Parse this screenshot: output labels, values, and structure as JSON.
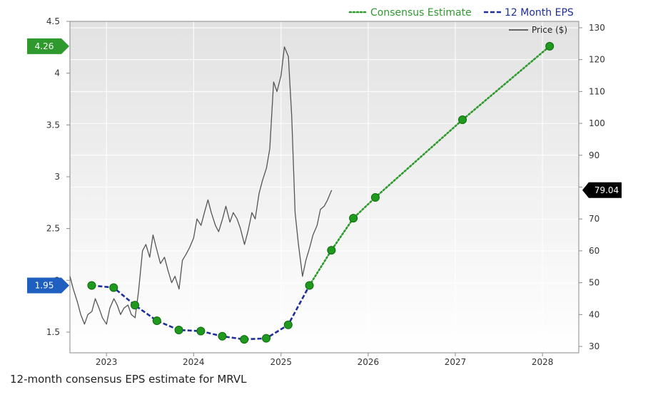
{
  "chart_data": {
    "type": "line",
    "title": "",
    "xlabel": "",
    "ylabel_left": "",
    "ylabel_right": "",
    "x_range": [
      "2022-08-01",
      "2028-06-01"
    ],
    "x_ticks": [
      {
        "label": "2023",
        "date": "2023-01-01"
      },
      {
        "label": "2024",
        "date": "2024-01-01"
      },
      {
        "label": "2025",
        "date": "2025-01-01"
      },
      {
        "label": "2026",
        "date": "2026-01-01"
      },
      {
        "label": "2027",
        "date": "2027-01-01"
      },
      {
        "label": "2028",
        "date": "2028-01-01"
      }
    ],
    "left_axis": {
      "ylim": [
        1.3,
        4.5
      ],
      "ticks": [
        "1.5",
        "2",
        "2.5",
        "3",
        "3.5",
        "4",
        "4.5"
      ]
    },
    "right_axis": {
      "ylim": [
        28,
        132
      ],
      "ticks": [
        "30",
        "40",
        "50",
        "60",
        "70",
        "80",
        "90",
        "100",
        "110",
        "120",
        "130"
      ]
    },
    "grid": true,
    "legend": {
      "position": "top-right",
      "entries": [
        {
          "name": "Consensus Estimate",
          "style": "dotted",
          "color": "#2e9a2e"
        },
        {
          "name": "12 Month EPS",
          "style": "dashed",
          "color": "#1f2f9a"
        },
        {
          "name": "Price ($)",
          "style": "solid",
          "color": "#555555"
        }
      ]
    },
    "series": [
      {
        "name": "12 Month EPS",
        "axis": "left",
        "color": "#1f2f9a",
        "points": [
          {
            "date": "2022-10-31",
            "value": 1.95
          },
          {
            "date": "2023-01-31",
            "value": 1.93
          },
          {
            "date": "2023-04-30",
            "value": 1.76
          },
          {
            "date": "2023-07-31",
            "value": 1.61
          },
          {
            "date": "2023-10-31",
            "value": 1.52
          },
          {
            "date": "2024-01-31",
            "value": 1.51
          },
          {
            "date": "2024-04-30",
            "value": 1.46
          },
          {
            "date": "2024-07-31",
            "value": 1.43
          },
          {
            "date": "2024-10-31",
            "value": 1.44
          },
          {
            "date": "2025-01-31",
            "value": 1.57
          },
          {
            "date": "2025-04-30",
            "value": 1.95
          }
        ]
      },
      {
        "name": "Consensus Estimate",
        "axis": "left",
        "color": "#2e9a2e",
        "points": [
          {
            "date": "2025-04-30",
            "value": 1.95
          },
          {
            "date": "2025-07-31",
            "value": 2.29
          },
          {
            "date": "2025-10-31",
            "value": 2.6
          },
          {
            "date": "2026-01-31",
            "value": 2.8
          },
          {
            "date": "2027-01-31",
            "value": 3.55
          },
          {
            "date": "2028-01-31",
            "value": 4.26
          }
        ]
      },
      {
        "name": "Price ($)",
        "axis": "right",
        "color": "#555555",
        "points": [
          [
            "2022-08-01",
            52
          ],
          [
            "2022-08-15",
            48
          ],
          [
            "2022-09-01",
            44
          ],
          [
            "2022-09-15",
            40
          ],
          [
            "2022-10-01",
            37
          ],
          [
            "2022-10-15",
            40
          ],
          [
            "2022-11-01",
            41
          ],
          [
            "2022-11-15",
            45
          ],
          [
            "2022-12-01",
            42
          ],
          [
            "2022-12-15",
            39
          ],
          [
            "2023-01-01",
            37
          ],
          [
            "2023-01-15",
            42
          ],
          [
            "2023-02-01",
            45
          ],
          [
            "2023-02-15",
            43
          ],
          [
            "2023-03-01",
            40
          ],
          [
            "2023-03-15",
            42
          ],
          [
            "2023-04-01",
            43
          ],
          [
            "2023-04-15",
            40
          ],
          [
            "2023-05-01",
            39
          ],
          [
            "2023-05-15",
            47
          ],
          [
            "2023-06-01",
            60
          ],
          [
            "2023-06-15",
            62
          ],
          [
            "2023-07-01",
            58
          ],
          [
            "2023-07-15",
            65
          ],
          [
            "2023-08-01",
            60
          ],
          [
            "2023-08-15",
            56
          ],
          [
            "2023-09-01",
            58
          ],
          [
            "2023-09-15",
            54
          ],
          [
            "2023-10-01",
            50
          ],
          [
            "2023-10-15",
            52
          ],
          [
            "2023-11-01",
            48
          ],
          [
            "2023-11-15",
            57
          ],
          [
            "2023-12-01",
            59
          ],
          [
            "2023-12-15",
            61
          ],
          [
            "2024-01-01",
            64
          ],
          [
            "2024-01-15",
            70
          ],
          [
            "2024-02-01",
            68
          ],
          [
            "2024-02-15",
            72
          ],
          [
            "2024-03-01",
            76
          ],
          [
            "2024-03-15",
            72
          ],
          [
            "2024-04-01",
            68
          ],
          [
            "2024-04-15",
            66
          ],
          [
            "2024-05-01",
            70
          ],
          [
            "2024-05-15",
            74
          ],
          [
            "2024-06-01",
            69
          ],
          [
            "2024-06-15",
            72
          ],
          [
            "2024-07-01",
            70
          ],
          [
            "2024-07-15",
            67
          ],
          [
            "2024-08-01",
            62
          ],
          [
            "2024-08-15",
            66
          ],
          [
            "2024-09-01",
            72
          ],
          [
            "2024-09-15",
            70
          ],
          [
            "2024-10-01",
            78
          ],
          [
            "2024-10-15",
            82
          ],
          [
            "2024-11-01",
            86
          ],
          [
            "2024-11-15",
            92
          ],
          [
            "2024-12-01",
            113
          ],
          [
            "2024-12-15",
            110
          ],
          [
            "2025-01-01",
            115
          ],
          [
            "2025-01-15",
            124
          ],
          [
            "2025-02-01",
            121
          ],
          [
            "2025-02-15",
            102
          ],
          [
            "2025-03-01",
            72
          ],
          [
            "2025-03-15",
            62
          ],
          [
            "2025-04-01",
            52
          ],
          [
            "2025-04-15",
            57
          ],
          [
            "2025-05-01",
            61
          ],
          [
            "2025-05-15",
            65
          ],
          [
            "2025-06-01",
            68
          ],
          [
            "2025-06-15",
            73
          ],
          [
            "2025-07-01",
            74
          ],
          [
            "2025-07-15",
            76
          ],
          [
            "2025-08-01",
            79.04
          ]
        ]
      }
    ],
    "flags": [
      {
        "label": "4.26",
        "axis": "left",
        "value": 4.26,
        "color": "#2e9a2e"
      },
      {
        "label": "1.95",
        "axis": "left",
        "value": 1.95,
        "color": "#1f5fbf"
      },
      {
        "label": "79.04",
        "axis": "right",
        "value": 79.04,
        "color": "#000000"
      }
    ]
  },
  "caption": "12-month consensus EPS estimate for MRVL"
}
